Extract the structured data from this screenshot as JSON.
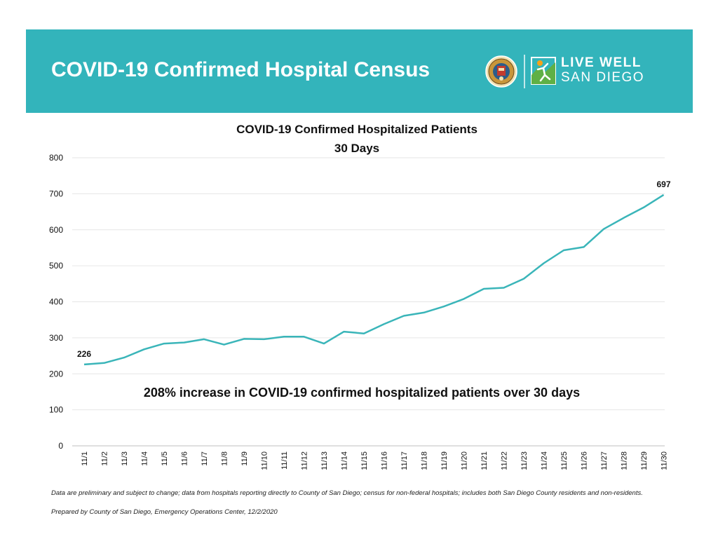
{
  "banner": {
    "title": "COVID-19 Confirmed Hospital Census",
    "brand_line1": "LIVE WELL",
    "brand_line2": "SAN DIEGO",
    "background_color": "#33b4bb",
    "seal_icon": "county-seal-icon",
    "brand_icon": "live-well-logo-icon"
  },
  "chart_data": {
    "type": "line",
    "title": "COVID-19 Confirmed Hospitalized Patients",
    "subtitle": "30 Days",
    "annotation": "208% increase in COVID-19 confirmed hospitalized patients over 30 days",
    "xlabel": "",
    "ylabel": "",
    "ylim": [
      0,
      800
    ],
    "yticks": [
      0,
      100,
      200,
      300,
      400,
      500,
      600,
      700,
      800
    ],
    "grid": true,
    "legend": "none",
    "line_color": "#3ab5b9",
    "categories": [
      "11/1",
      "11/2",
      "11/3",
      "11/4",
      "11/5",
      "11/6",
      "11/7",
      "11/8",
      "11/9",
      "11/10",
      "11/11",
      "11/12",
      "11/13",
      "11/14",
      "11/15",
      "11/16",
      "11/17",
      "11/18",
      "11/19",
      "11/20",
      "11/21",
      "11/22",
      "11/23",
      "11/24",
      "11/25",
      "11/26",
      "11/27",
      "11/28",
      "11/29",
      "11/30"
    ],
    "series": [
      {
        "values": [
          226,
          230,
          245,
          268,
          284,
          287,
          296,
          281,
          297,
          296,
          303,
          303,
          284,
          317,
          312,
          338,
          361,
          370,
          387,
          408,
          436,
          439,
          464,
          507,
          543,
          552,
          602,
          633,
          662,
          697
        ]
      }
    ],
    "data_labels": [
      {
        "index": 0,
        "text": "226"
      },
      {
        "index": 29,
        "text": "697"
      }
    ]
  },
  "footnotes": {
    "line1": "Data are preliminary and subject to change; data from hospitals reporting directly to County of San Diego; census for non-federal hospitals; includes both San Diego County residents and non-residents.",
    "line2": "Prepared by County of San Diego, Emergency Operations Center, 12/2/2020"
  }
}
